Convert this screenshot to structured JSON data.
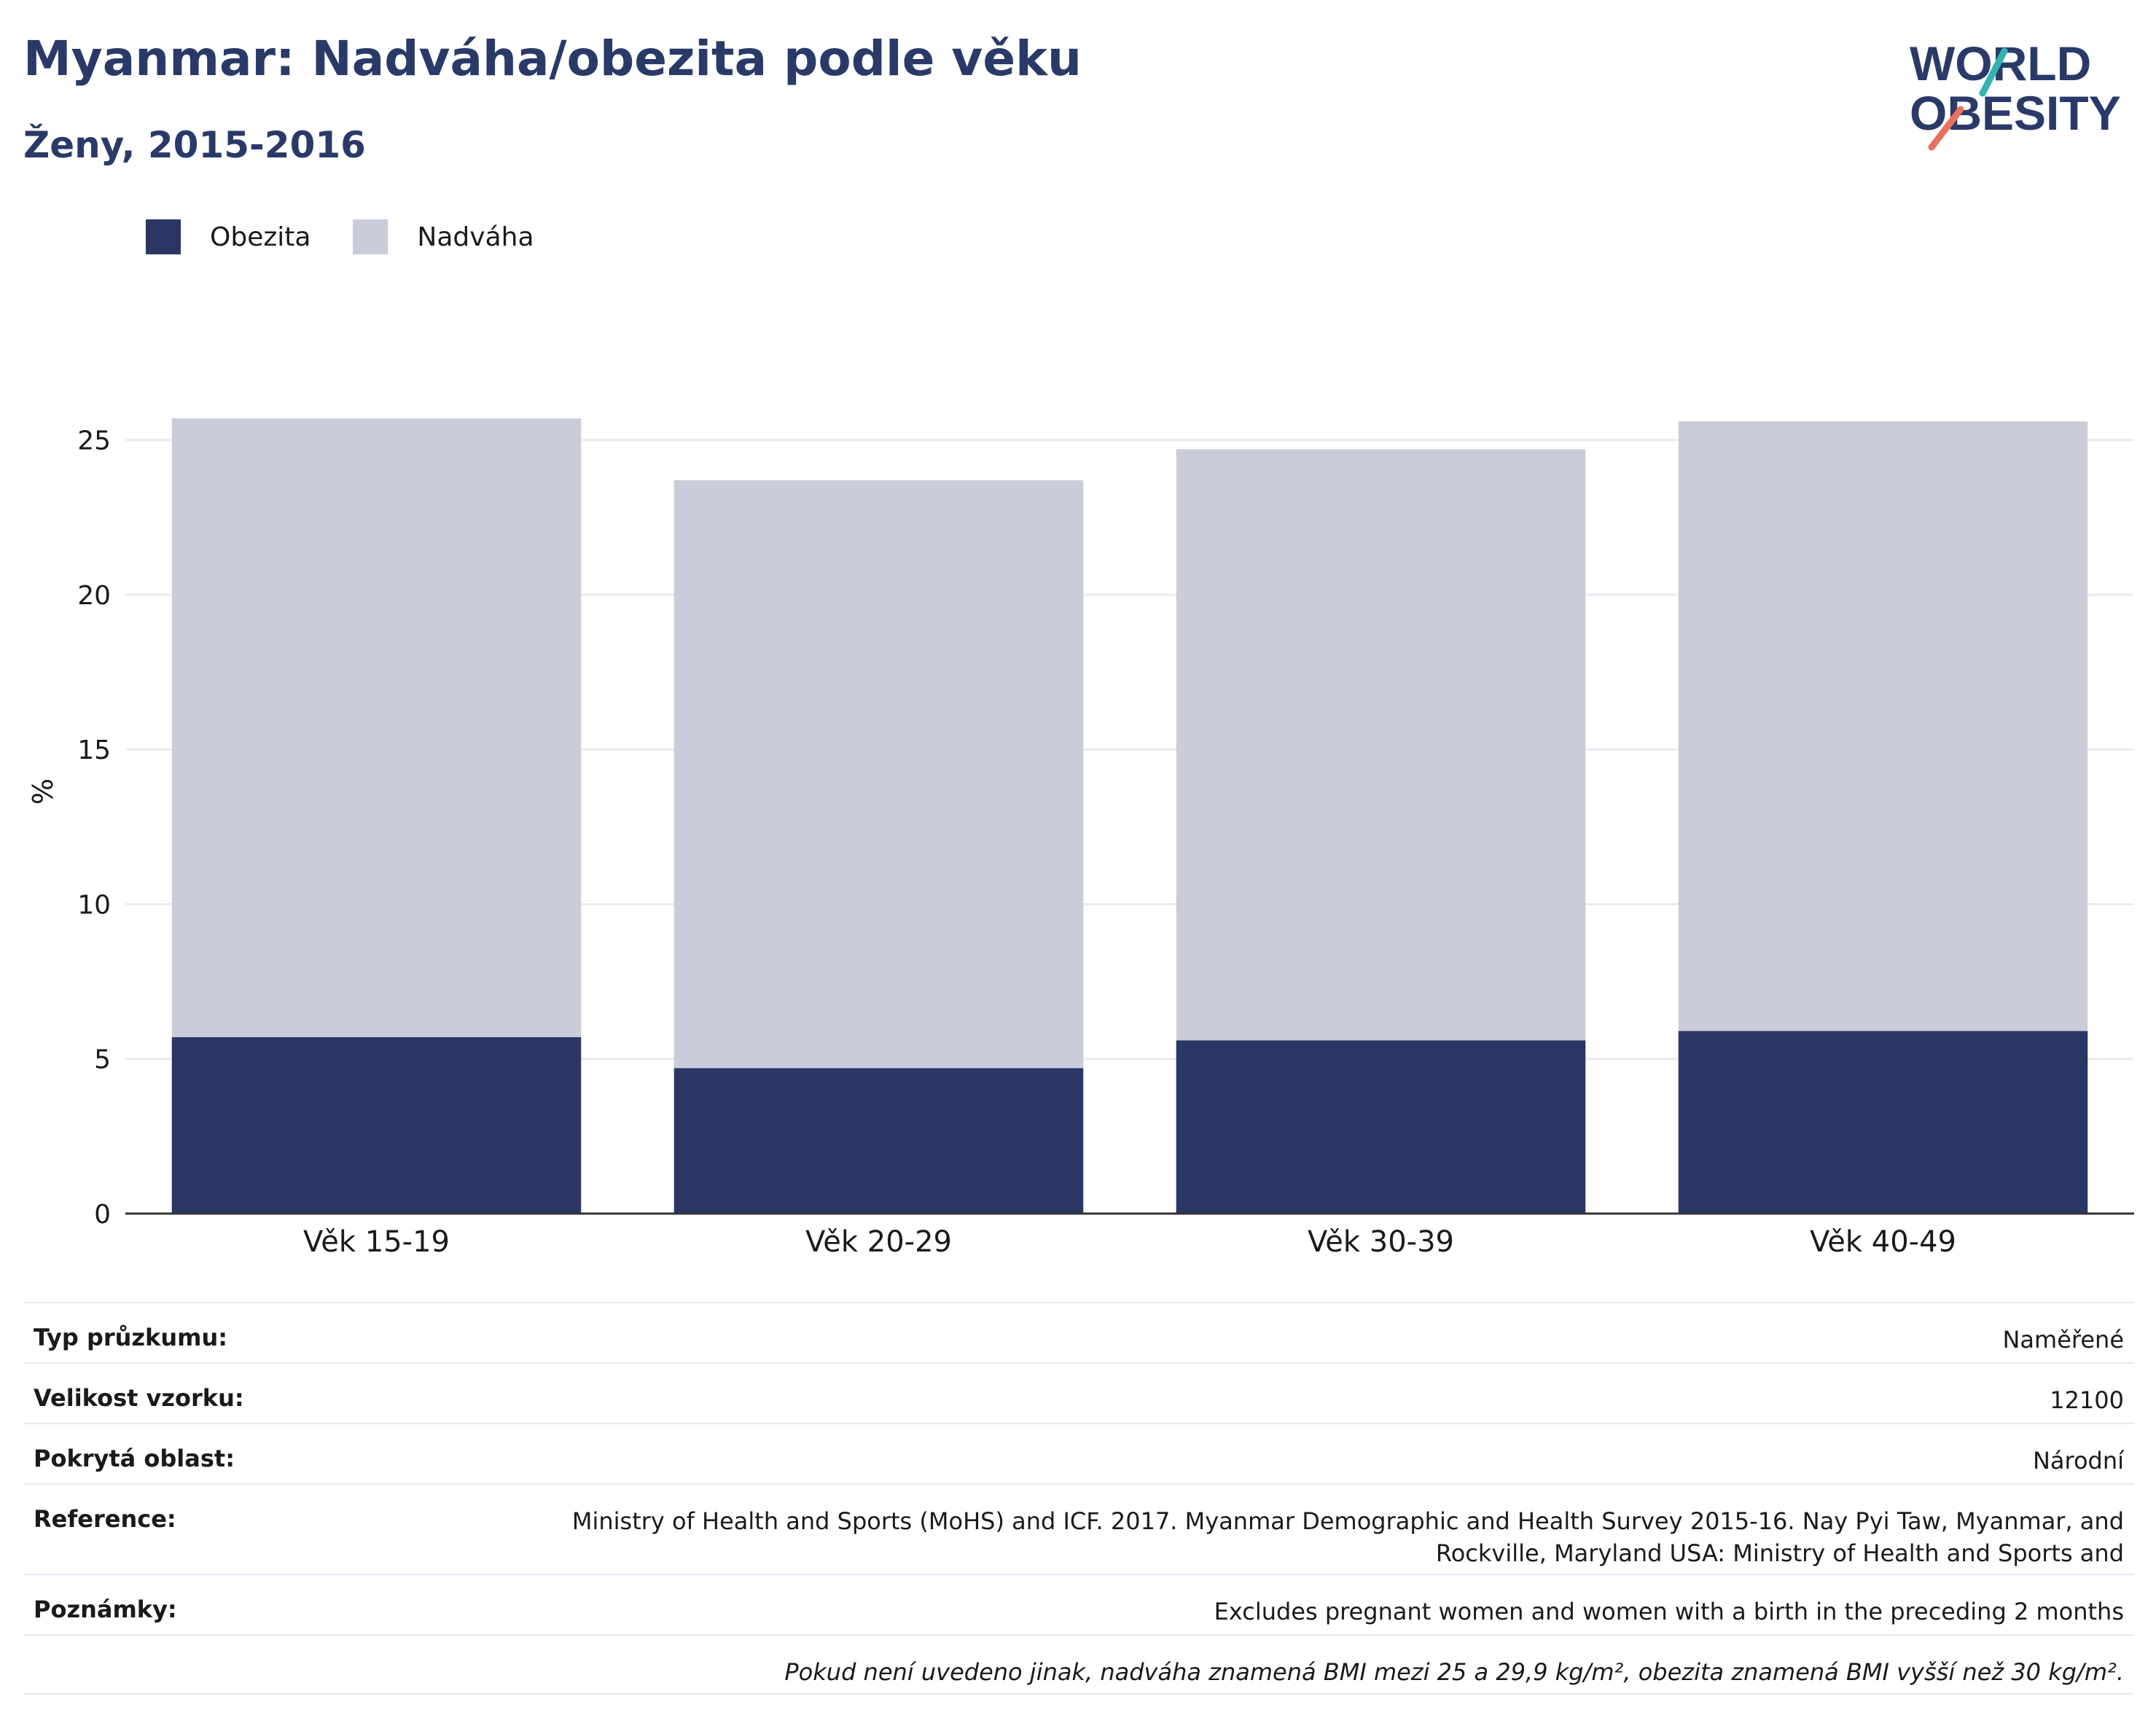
{
  "title": "Myanmar: Nadváha/obezita podle věku",
  "subtitle": "Ženy, 2015-2016",
  "logo": {
    "line1": "WORLD",
    "line2": "OBESITY"
  },
  "colors": {
    "obesity": "#2b3664",
    "overweight": "#cacdd9",
    "title": "#2a3a68",
    "grid": "#ebebef",
    "axis": "#333333",
    "logo_teal": "#33b3b0",
    "logo_coral": "#e8705c"
  },
  "legend": [
    {
      "label": "Obezita",
      "color": "#2b3664"
    },
    {
      "label": "Nadváha",
      "color": "#cacdd9"
    }
  ],
  "chart_data": {
    "type": "bar",
    "stacked": true,
    "categories": [
      "Věk 15-19",
      "Věk 20-29",
      "Věk 30-39",
      "Věk 40-49"
    ],
    "series": [
      {
        "name": "Obezita",
        "values": [
          5.7,
          4.7,
          5.6,
          5.9
        ]
      },
      {
        "name": "Nadváha",
        "values": [
          20.0,
          19.0,
          19.1,
          19.7
        ]
      }
    ],
    "title": "Myanmar: Nadváha/obezita podle věku",
    "subtitle": "Ženy, 2015-2016",
    "xlabel": "",
    "ylabel": "%",
    "ylim": [
      0,
      26.5
    ],
    "yticks": [
      0,
      5,
      10,
      15,
      20,
      25
    ],
    "grid": true,
    "legend_position": "top-left"
  },
  "info": {
    "survey_type": {
      "label": "Typ průzkumu:",
      "value": "Naměřené"
    },
    "sample_size": {
      "label": "Velikost vzorku:",
      "value": "12100"
    },
    "area": {
      "label": "Pokrytá oblast:",
      "value": "Národní"
    },
    "reference": {
      "label": "Reference:",
      "line1": "Ministry of Health and Sports (MoHS) and ICF. 2017. Myanmar Demographic and Health Survey 2015-16. Nay Pyi Taw, Myanmar, and",
      "line2": "Rockville, Maryland USA: Ministry of Health and Sports and"
    },
    "notes": {
      "label": "Poznámky:",
      "value": "Excludes pregnant women and women with a birth in the preceding 2 months"
    },
    "footnote": "Pokud není uvedeno jinak, nadváha znamená BMI mezi 25 a 29,9 kg/m², obezita znamená BMI vyšší než 30 kg/m²."
  }
}
